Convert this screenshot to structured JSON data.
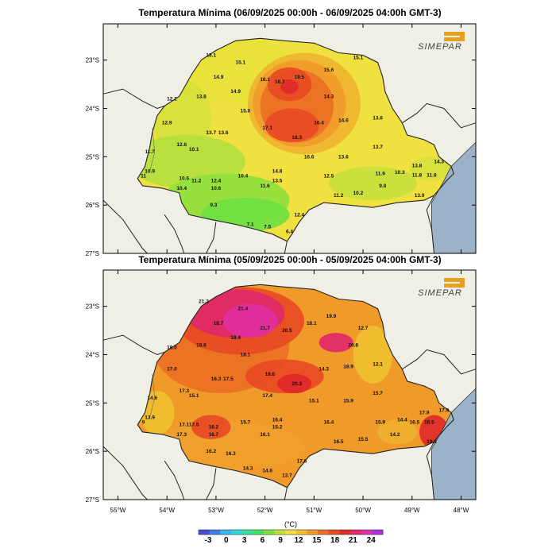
{
  "logo_text": "SIMEPAR",
  "maps": [
    {
      "title": "Temperatura Mínima (06/09/2025 00:00h - 06/09/2025 04:00h GMT-3)",
      "lat_ticks": [
        "23°S",
        "24°S",
        "25°S",
        "26°S",
        "27°S"
      ],
      "points": [
        {
          "lon": -53.1,
          "lat": -22.9,
          "v": "13.1"
        },
        {
          "lon": -52.5,
          "lat": -23.05,
          "v": "15.1"
        },
        {
          "lon": -52.95,
          "lat": -23.35,
          "v": "14.9"
        },
        {
          "lon": -52.0,
          "lat": -23.4,
          "v": "16.1"
        },
        {
          "lon": -51.7,
          "lat": -23.45,
          "v": "18.7"
        },
        {
          "lon": -51.3,
          "lat": -23.35,
          "v": "19.5"
        },
        {
          "lon": -50.7,
          "lat": -23.2,
          "v": "15.6"
        },
        {
          "lon": -50.1,
          "lat": -22.95,
          "v": "15.1"
        },
        {
          "lon": -53.9,
          "lat": -23.8,
          "v": "12.2"
        },
        {
          "lon": -53.3,
          "lat": -23.75,
          "v": "13.8"
        },
        {
          "lon": -52.6,
          "lat": -23.65,
          "v": "14.9"
        },
        {
          "lon": -52.4,
          "lat": -24.05,
          "v": "15.0"
        },
        {
          "lon": -50.7,
          "lat": -23.75,
          "v": "14.3"
        },
        {
          "lon": -54.0,
          "lat": -24.3,
          "v": "12.9"
        },
        {
          "lon": -53.1,
          "lat": -24.5,
          "v": "13.7"
        },
        {
          "lon": -52.85,
          "lat": -24.5,
          "v": "13.6"
        },
        {
          "lon": -51.95,
          "lat": -24.4,
          "v": "17.1"
        },
        {
          "lon": -50.9,
          "lat": -24.3,
          "v": "16.4"
        },
        {
          "lon": -50.4,
          "lat": -24.25,
          "v": "14.6"
        },
        {
          "lon": -49.7,
          "lat": -24.2,
          "v": "13.6"
        },
        {
          "lon": -51.35,
          "lat": -24.6,
          "v": "18.3"
        },
        {
          "lon": -53.7,
          "lat": -24.75,
          "v": "12.6"
        },
        {
          "lon": -53.45,
          "lat": -24.85,
          "v": "10.1"
        },
        {
          "lon": -54.35,
          "lat": -24.9,
          "v": "11.7"
        },
        {
          "lon": -51.1,
          "lat": -25.0,
          "v": "16.6"
        },
        {
          "lon": -50.4,
          "lat": -25.0,
          "v": "13.6"
        },
        {
          "lon": -49.7,
          "lat": -24.8,
          "v": "13.7"
        },
        {
          "lon": -54.35,
          "lat": -25.3,
          "v": "10.9"
        },
        {
          "lon": -54.48,
          "lat": -25.4,
          "v": "11"
        },
        {
          "lon": -53.65,
          "lat": -25.45,
          "v": "10.6"
        },
        {
          "lon": -53.4,
          "lat": -25.5,
          "v": "11.2"
        },
        {
          "lon": -53.0,
          "lat": -25.5,
          "v": "12.4"
        },
        {
          "lon": -52.45,
          "lat": -25.4,
          "v": "10.4"
        },
        {
          "lon": -51.75,
          "lat": -25.3,
          "v": "14.8"
        },
        {
          "lon": -50.7,
          "lat": -25.4,
          "v": "12.5"
        },
        {
          "lon": -49.65,
          "lat": -25.35,
          "v": "11.9"
        },
        {
          "lon": -49.25,
          "lat": -25.32,
          "v": "10.3"
        },
        {
          "lon": -48.9,
          "lat": -25.38,
          "v": "11.8"
        },
        {
          "lon": -48.6,
          "lat": -25.38,
          "v": "11.8"
        },
        {
          "lon": -48.9,
          "lat": -25.18,
          "v": "13.8"
        },
        {
          "lon": -48.45,
          "lat": -25.1,
          "v": "14.3"
        },
        {
          "lon": -53.7,
          "lat": -25.65,
          "v": "10.4"
        },
        {
          "lon": -53.0,
          "lat": -25.65,
          "v": "10.6"
        },
        {
          "lon": -52.0,
          "lat": -25.6,
          "v": "11.6"
        },
        {
          "lon": -51.75,
          "lat": -25.5,
          "v": "13.5"
        },
        {
          "lon": -50.5,
          "lat": -25.8,
          "v": "11.2"
        },
        {
          "lon": -50.1,
          "lat": -25.75,
          "v": "10.2"
        },
        {
          "lon": -49.6,
          "lat": -25.6,
          "v": "9.8"
        },
        {
          "lon": -48.85,
          "lat": -25.8,
          "v": "13.9"
        },
        {
          "lon": -53.05,
          "lat": -26.0,
          "v": "9.3"
        },
        {
          "lon": -51.3,
          "lat": -26.2,
          "v": "12.4"
        },
        {
          "lon": -52.3,
          "lat": -26.4,
          "v": "7.1"
        },
        {
          "lon": -51.95,
          "lat": -26.45,
          "v": "7.5"
        },
        {
          "lon": -51.5,
          "lat": -26.55,
          "v": "6.4"
        }
      ]
    },
    {
      "title": "Temperatura Mínima (05/09/2025 00:00h - 05/09/2025 04:00h GMT-3)",
      "lat_ticks": [
        "23°S",
        "24°S",
        "25°S",
        "26°S",
        "27°S"
      ],
      "lon_ticks": [
        "55°W",
        "54°W",
        "53°W",
        "52°W",
        "51°W",
        "50°W",
        "49°W",
        "48°W"
      ],
      "points": [
        {
          "lon": -53.25,
          "lat": -22.9,
          "v": "21.3"
        },
        {
          "lon": -52.45,
          "lat": -23.05,
          "v": "21.4"
        },
        {
          "lon": -52.95,
          "lat": -23.35,
          "v": "18.7"
        },
        {
          "lon": -52.0,
          "lat": -23.45,
          "v": "21.7"
        },
        {
          "lon": -51.55,
          "lat": -23.5,
          "v": "20.5"
        },
        {
          "lon": -51.05,
          "lat": -23.35,
          "v": "18.1"
        },
        {
          "lon": -50.65,
          "lat": -23.2,
          "v": "19.9"
        },
        {
          "lon": -50.0,
          "lat": -23.45,
          "v": "12.7"
        },
        {
          "lon": -52.6,
          "lat": -23.65,
          "v": "18.4"
        },
        {
          "lon": -53.9,
          "lat": -23.85,
          "v": "18.0"
        },
        {
          "lon": -53.3,
          "lat": -23.8,
          "v": "18.6"
        },
        {
          "lon": -50.2,
          "lat": -23.8,
          "v": "20.8"
        },
        {
          "lon": -52.4,
          "lat": -24.0,
          "v": "18.1"
        },
        {
          "lon": -53.9,
          "lat": -24.3,
          "v": "17.0"
        },
        {
          "lon": -49.7,
          "lat": -24.2,
          "v": "12.1"
        },
        {
          "lon": -51.9,
          "lat": -24.4,
          "v": "19.6"
        },
        {
          "lon": -50.8,
          "lat": -24.3,
          "v": "14.3"
        },
        {
          "lon": -50.3,
          "lat": -24.25,
          "v": "18.9"
        },
        {
          "lon": -53.0,
          "lat": -24.5,
          "v": "16.3"
        },
        {
          "lon": -52.75,
          "lat": -24.5,
          "v": "17.5"
        },
        {
          "lon": -51.35,
          "lat": -24.6,
          "v": "20.3"
        },
        {
          "lon": -54.3,
          "lat": -24.9,
          "v": "14.6"
        },
        {
          "lon": -53.65,
          "lat": -24.75,
          "v": "17.3"
        },
        {
          "lon": -53.45,
          "lat": -24.85,
          "v": "15.1"
        },
        {
          "lon": -51.95,
          "lat": -24.85,
          "v": "17.4"
        },
        {
          "lon": -51.0,
          "lat": -24.95,
          "v": "15.1"
        },
        {
          "lon": -50.3,
          "lat": -24.95,
          "v": "15.9"
        },
        {
          "lon": -49.7,
          "lat": -24.8,
          "v": "15.7"
        },
        {
          "lon": -54.35,
          "lat": -25.3,
          "v": "13.9"
        },
        {
          "lon": -54.48,
          "lat": -25.4,
          "v": "9"
        },
        {
          "lon": -53.65,
          "lat": -25.45,
          "v": "17.1"
        },
        {
          "lon": -53.45,
          "lat": -25.45,
          "v": "17.5"
        },
        {
          "lon": -53.05,
          "lat": -25.5,
          "v": "18.2"
        },
        {
          "lon": -52.4,
          "lat": -25.4,
          "v": "15.7"
        },
        {
          "lon": -51.75,
          "lat": -25.35,
          "v": "16.4"
        },
        {
          "lon": -51.75,
          "lat": -25.5,
          "v": "15.2"
        },
        {
          "lon": -50.7,
          "lat": -25.4,
          "v": "16.4"
        },
        {
          "lon": -49.65,
          "lat": -25.4,
          "v": "15.9"
        },
        {
          "lon": -49.2,
          "lat": -25.35,
          "v": "14.4"
        },
        {
          "lon": -48.95,
          "lat": -25.4,
          "v": "16.5"
        },
        {
          "lon": -48.65,
          "lat": -25.4,
          "v": "16.5"
        },
        {
          "lon": -48.75,
          "lat": -25.2,
          "v": "17.9"
        },
        {
          "lon": -48.35,
          "lat": -25.15,
          "v": "17.9"
        },
        {
          "lon": -53.7,
          "lat": -25.65,
          "v": "17.3"
        },
        {
          "lon": -53.05,
          "lat": -25.65,
          "v": "16.7"
        },
        {
          "lon": -52.0,
          "lat": -25.65,
          "v": "16.1"
        },
        {
          "lon": -50.5,
          "lat": -25.8,
          "v": "16.5"
        },
        {
          "lon": -50.0,
          "lat": -25.75,
          "v": "15.5"
        },
        {
          "lon": -49.35,
          "lat": -25.65,
          "v": "14.2"
        },
        {
          "lon": -48.6,
          "lat": -25.8,
          "v": "19.8"
        },
        {
          "lon": -53.1,
          "lat": -26.0,
          "v": "16.2"
        },
        {
          "lon": -52.7,
          "lat": -26.05,
          "v": "16.3"
        },
        {
          "lon": -51.25,
          "lat": -26.2,
          "v": "17.6"
        },
        {
          "lon": -52.35,
          "lat": -26.35,
          "v": "14.3"
        },
        {
          "lon": -51.95,
          "lat": -26.4,
          "v": "14.6"
        },
        {
          "lon": -51.55,
          "lat": -26.5,
          "v": "13.7"
        }
      ]
    }
  ],
  "legend": {
    "unit": "(°C)",
    "ticks": [
      "-3",
      "0",
      "3",
      "6",
      "9",
      "12",
      "15",
      "18",
      "21",
      "24"
    ],
    "colors": [
      "#4a4ad8",
      "#3a7ee8",
      "#38b6f0",
      "#30d8d8",
      "#38e0a0",
      "#40e060",
      "#7ee03e",
      "#c2e03e",
      "#f0e040",
      "#f0c030",
      "#f09a2a",
      "#ec7024",
      "#e84a24",
      "#e02a2a",
      "#e0286a",
      "#e030b0",
      "#b030e0"
    ]
  }
}
